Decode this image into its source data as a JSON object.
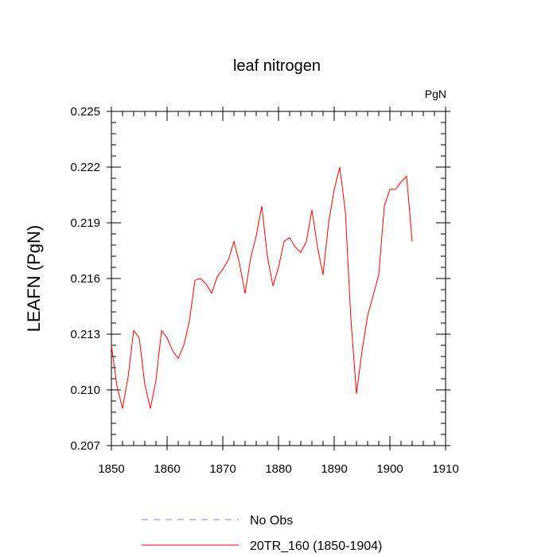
{
  "chart_data": {
    "type": "line",
    "title": "leaf nitrogen",
    "units_label": "PgN",
    "xlabel": "",
    "ylabel": "LEAFN  (PgN)",
    "xlim": [
      1850,
      1910
    ],
    "ylim": [
      0.207,
      0.225
    ],
    "x_ticks": [
      "1850",
      "1860",
      "1870",
      "1880",
      "1890",
      "1900",
      "1910"
    ],
    "y_ticks": [
      "0.207",
      "0.210",
      "0.213",
      "0.216",
      "0.219",
      "0.222",
      "0.225"
    ],
    "grid": false,
    "legend_position": "bottom",
    "series": [
      {
        "name": "No Obs",
        "color": "#8080ff",
        "dash": "dashed",
        "x": [],
        "y": []
      },
      {
        "name": "20TR_160 (1850-1904)",
        "color": "#ff0000",
        "dash": "solid",
        "x": [
          1850,
          1851,
          1852,
          1853,
          1854,
          1855,
          1856,
          1857,
          1858,
          1859,
          1860,
          1861,
          1862,
          1863,
          1864,
          1865,
          1866,
          1867,
          1868,
          1869,
          1870,
          1871,
          1872,
          1873,
          1874,
          1875,
          1876,
          1877,
          1878,
          1879,
          1880,
          1881,
          1882,
          1883,
          1884,
          1885,
          1886,
          1887,
          1888,
          1889,
          1890,
          1891,
          1892,
          1893,
          1894,
          1895,
          1896,
          1897,
          1898,
          1899,
          1900,
          1901,
          1902,
          1903,
          1904
        ],
        "y": [
          0.2124,
          0.2102,
          0.209,
          0.2107,
          0.2132,
          0.2128,
          0.2103,
          0.209,
          0.2105,
          0.2132,
          0.2128,
          0.2121,
          0.2117,
          0.2124,
          0.2137,
          0.2159,
          0.216,
          0.2157,
          0.2152,
          0.2161,
          0.2165,
          0.217,
          0.218,
          0.2168,
          0.2152,
          0.2171,
          0.2183,
          0.2199,
          0.2172,
          0.2156,
          0.2166,
          0.218,
          0.2182,
          0.2177,
          0.2174,
          0.218,
          0.2197,
          0.2177,
          0.2162,
          0.219,
          0.2208,
          0.222,
          0.2196,
          0.2138,
          0.2098,
          0.2121,
          0.214,
          0.2151,
          0.2162,
          0.2199,
          0.2208,
          0.2208,
          0.2212,
          0.2215,
          0.218
        ]
      }
    ]
  }
}
